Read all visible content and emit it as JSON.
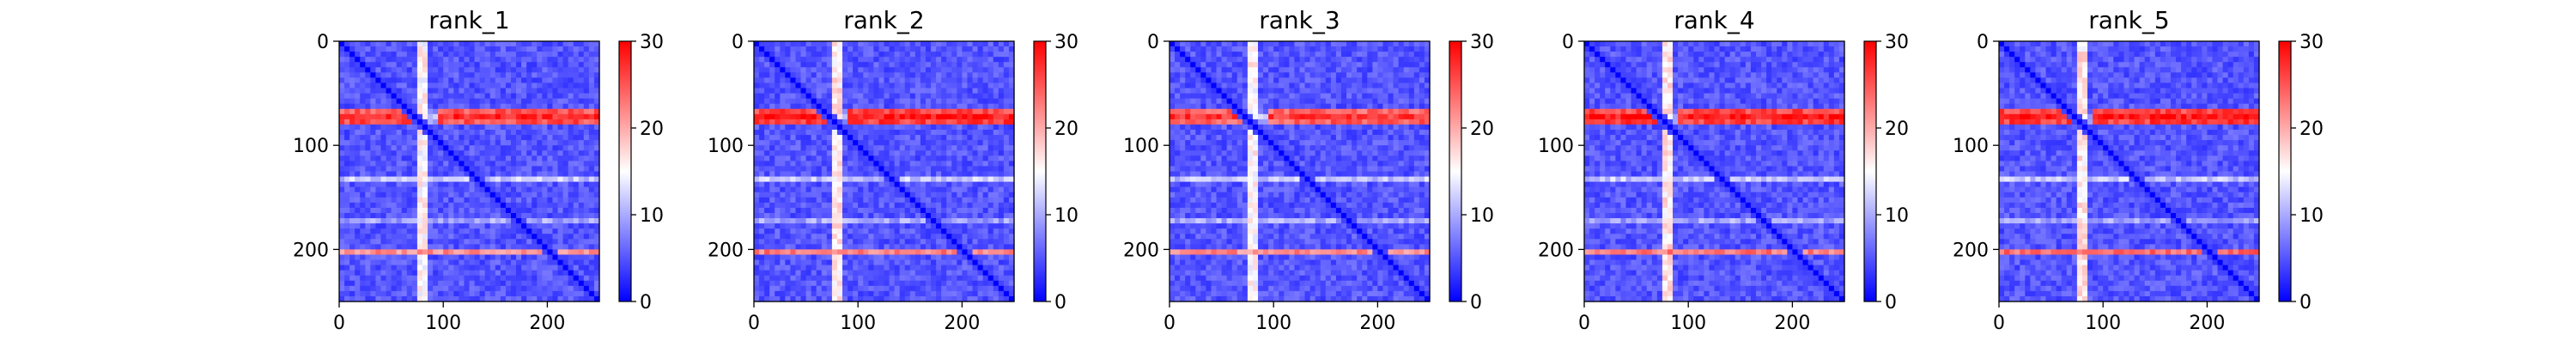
{
  "figure": {
    "background": "#ffffff"
  },
  "chart_data": [
    {
      "type": "heatmap",
      "title": "rank_1",
      "xlim": [
        0,
        250
      ],
      "ylim": [
        250,
        0
      ],
      "xticks": [
        "0",
        "100",
        "200"
      ],
      "yticks": [
        "0",
        "100",
        "200"
      ],
      "colorbar": {
        "range": [
          0,
          30
        ],
        "ticks": [
          "0",
          "10",
          "20",
          "30"
        ],
        "colormap": "bwr"
      },
      "features": {
        "bands": [
          {
            "orientation": "horizontal",
            "center": 73,
            "width": 14,
            "value": 28,
            "extent": [
              0,
              250
            ],
            "gap": [
              70,
              95
            ]
          },
          {
            "orientation": "vertical",
            "center": 80,
            "width": 10,
            "value": 17
          },
          {
            "orientation": "horizontal",
            "center": 202,
            "width": 7,
            "value": 22
          },
          {
            "orientation": "horizontal",
            "center": 133,
            "width": 4,
            "value": 12
          },
          {
            "orientation": "horizontal",
            "center": 172,
            "width": 4,
            "value": 10
          }
        ],
        "diagonal_value": 0,
        "background_value": 5
      }
    },
    {
      "type": "heatmap",
      "title": "rank_2",
      "xlim": [
        0,
        250
      ],
      "ylim": [
        250,
        0
      ],
      "xticks": [
        "0",
        "100",
        "200"
      ],
      "yticks": [
        "0",
        "100",
        "200"
      ],
      "colorbar": {
        "range": [
          0,
          30
        ],
        "ticks": [
          "0",
          "10",
          "20",
          "30"
        ],
        "colormap": "bwr"
      },
      "features": {
        "bands": [
          {
            "orientation": "horizontal",
            "center": 73,
            "width": 15,
            "value": 29,
            "extent": [
              0,
              250
            ],
            "gap": [
              70,
              92
            ]
          },
          {
            "orientation": "vertical",
            "center": 80,
            "width": 10,
            "value": 18
          },
          {
            "orientation": "horizontal",
            "center": 202,
            "width": 7,
            "value": 23
          },
          {
            "orientation": "horizontal",
            "center": 133,
            "width": 4,
            "value": 12
          },
          {
            "orientation": "horizontal",
            "center": 172,
            "width": 4,
            "value": 10
          }
        ],
        "diagonal_value": 0,
        "background_value": 5
      }
    },
    {
      "type": "heatmap",
      "title": "rank_3",
      "xlim": [
        0,
        250
      ],
      "ylim": [
        250,
        0
      ],
      "xticks": [
        "0",
        "100",
        "200"
      ],
      "yticks": [
        "0",
        "100",
        "200"
      ],
      "colorbar": {
        "range": [
          0,
          30
        ],
        "ticks": [
          "0",
          "10",
          "20",
          "30"
        ],
        "colormap": "bwr"
      },
      "features": {
        "bands": [
          {
            "orientation": "horizontal",
            "center": 73,
            "width": 14,
            "value": 27,
            "extent": [
              0,
              250
            ],
            "gap": [
              70,
              95
            ]
          },
          {
            "orientation": "vertical",
            "center": 80,
            "width": 10,
            "value": 17
          },
          {
            "orientation": "horizontal",
            "center": 202,
            "width": 7,
            "value": 22
          },
          {
            "orientation": "horizontal",
            "center": 133,
            "width": 4,
            "value": 12
          },
          {
            "orientation": "horizontal",
            "center": 172,
            "width": 4,
            "value": 10
          }
        ],
        "diagonal_value": 0,
        "background_value": 5
      }
    },
    {
      "type": "heatmap",
      "title": "rank_4",
      "xlim": [
        0,
        250
      ],
      "ylim": [
        250,
        0
      ],
      "xticks": [
        "0",
        "100",
        "200"
      ],
      "yticks": [
        "0",
        "100",
        "200"
      ],
      "colorbar": {
        "range": [
          0,
          30
        ],
        "ticks": [
          "0",
          "10",
          "20",
          "30"
        ],
        "colormap": "bwr"
      },
      "features": {
        "bands": [
          {
            "orientation": "horizontal",
            "center": 73,
            "width": 15,
            "value": 29,
            "extent": [
              0,
              250
            ],
            "gap": [
              70,
              92
            ]
          },
          {
            "orientation": "vertical",
            "center": 80,
            "width": 10,
            "value": 18
          },
          {
            "orientation": "horizontal",
            "center": 202,
            "width": 7,
            "value": 23
          },
          {
            "orientation": "horizontal",
            "center": 133,
            "width": 4,
            "value": 12
          },
          {
            "orientation": "horizontal",
            "center": 172,
            "width": 4,
            "value": 10
          }
        ],
        "diagonal_value": 0,
        "background_value": 5
      }
    },
    {
      "type": "heatmap",
      "title": "rank_5",
      "xlim": [
        0,
        250
      ],
      "ylim": [
        250,
        0
      ],
      "xticks": [
        "0",
        "100",
        "200"
      ],
      "yticks": [
        "0",
        "100",
        "200"
      ],
      "colorbar": {
        "range": [
          0,
          30
        ],
        "ticks": [
          "0",
          "10",
          "20",
          "30"
        ],
        "colormap": "bwr"
      },
      "features": {
        "bands": [
          {
            "orientation": "horizontal",
            "center": 73,
            "width": 15,
            "value": 29,
            "extent": [
              0,
              250
            ],
            "gap": [
              70,
              92
            ]
          },
          {
            "orientation": "vertical",
            "center": 80,
            "width": 10,
            "value": 18
          },
          {
            "orientation": "horizontal",
            "center": 202,
            "width": 7,
            "value": 24
          },
          {
            "orientation": "horizontal",
            "center": 133,
            "width": 4,
            "value": 12
          },
          {
            "orientation": "horizontal",
            "center": 172,
            "width": 4,
            "value": 10
          }
        ],
        "diagonal_value": 0,
        "background_value": 5
      }
    }
  ]
}
